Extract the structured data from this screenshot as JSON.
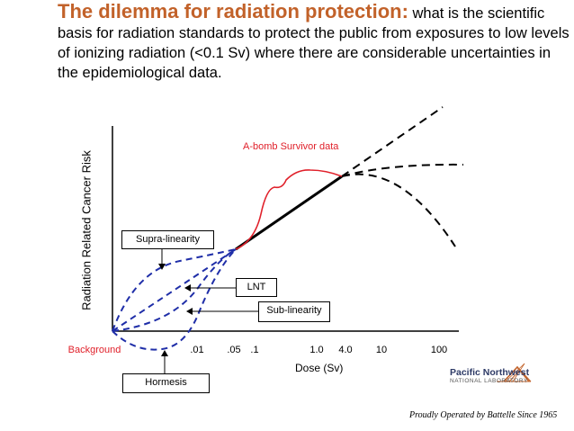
{
  "title": {
    "lead": "The dilemma for radiation protection:",
    "rest": " what is the scientific basis for radiation standards to protect the public from exposures to low levels of ionizing radiation (<0.1 Sv) where there are considerable uncertainties in the epidemiological data."
  },
  "diagram": {
    "ylabel": "Radiation Related Cancer Risk",
    "xlabel": "Dose (Sv)",
    "xticks": [
      ".01",
      ".05",
      ".1",
      "1.0",
      "4.0",
      "10",
      "100"
    ],
    "background_label": "Background",
    "abomb_label": "A-bomb Survivor data",
    "boxes": {
      "supra": "Supra-linearity",
      "lnt": "LNT",
      "sub": "Sub-linearity",
      "hormesis": "Hormesis"
    },
    "colors": {
      "blue": "#1f2ea8",
      "red": "#e0202a",
      "orange": "#c2622a"
    }
  },
  "footer": {
    "org_name": "Pacific Northwest",
    "org_sub": "NATIONAL LABORATORY",
    "tagline": "Proudly Operated by Battelle Since 1965"
  }
}
